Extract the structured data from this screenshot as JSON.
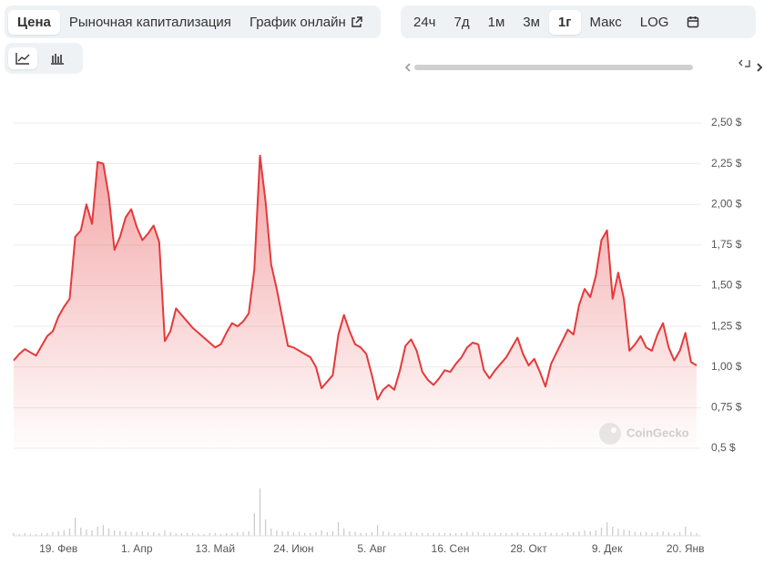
{
  "tabs": [
    "Цена",
    "Рыночная капитализация",
    "График онлайн"
  ],
  "active_tab": 0,
  "ranges": [
    "24ч",
    "7д",
    "1м",
    "3м",
    "1г",
    "Макс",
    "LOG"
  ],
  "active_range": 4,
  "chart_data": {
    "type": "line",
    "color": "#e5393b",
    "watermark": "CoinGecko",
    "ylim": [
      0.5,
      2.5
    ],
    "yticks": [
      {
        "value": 0.5,
        "label": "0,5 $"
      },
      {
        "value": 0.75,
        "label": "0,75 $"
      },
      {
        "value": 1,
        "label": "1,00 $"
      },
      {
        "value": 1.25,
        "label": "1,25 $"
      },
      {
        "value": 1.5,
        "label": "1,50 $"
      },
      {
        "value": 1.75,
        "label": "1,75 $"
      },
      {
        "value": 2,
        "label": "2,00 $"
      },
      {
        "value": 2.25,
        "label": "2,25 $"
      },
      {
        "value": 2.5,
        "label": "2,50 $"
      }
    ],
    "grid": true,
    "categories": [
      null,
      null,
      null,
      null,
      null,
      null,
      null,
      null,
      "19. Фев",
      null,
      null,
      null,
      null,
      null,
      null,
      null,
      null,
      null,
      null,
      null,
      null,
      null,
      "1. Апр",
      null,
      null,
      null,
      null,
      null,
      null,
      null,
      null,
      null,
      null,
      null,
      null,
      null,
      "13. Май",
      null,
      null,
      null,
      null,
      null,
      null,
      null,
      null,
      null,
      null,
      null,
      null,
      null,
      "24. Июн",
      null,
      null,
      null,
      null,
      null,
      null,
      null,
      null,
      null,
      null,
      null,
      null,
      null,
      "5. Авг",
      null,
      null,
      null,
      null,
      null,
      null,
      null,
      null,
      null,
      null,
      null,
      null,
      null,
      "16. Сен",
      null,
      null,
      null,
      null,
      null,
      null,
      null,
      null,
      null,
      null,
      null,
      null,
      null,
      "28. Окт",
      null,
      null,
      null,
      null,
      null,
      null,
      null,
      null,
      null,
      null,
      null,
      null,
      null,
      "9. Дек",
      null,
      null,
      null,
      null,
      null,
      null,
      null,
      null,
      null,
      null,
      null,
      null,
      null,
      "20. Янв",
      null,
      null
    ],
    "values": [
      1.04,
      1.08,
      1.11,
      1.09,
      1.07,
      1.13,
      1.19,
      1.22,
      1.31,
      1.37,
      1.42,
      1.8,
      1.84,
      2.0,
      1.88,
      2.26,
      2.25,
      2.05,
      1.72,
      1.8,
      1.92,
      1.97,
      1.86,
      1.78,
      1.82,
      1.87,
      1.77,
      1.16,
      1.22,
      1.36,
      1.32,
      1.28,
      1.24,
      1.21,
      1.18,
      1.15,
      1.12,
      1.14,
      1.21,
      1.27,
      1.25,
      1.28,
      1.33,
      1.6,
      2.3,
      2.02,
      1.63,
      1.48,
      1.3,
      1.13,
      1.12,
      1.1,
      1.08,
      1.06,
      1.0,
      0.87,
      0.91,
      0.95,
      1.2,
      1.32,
      1.22,
      1.14,
      1.12,
      1.08,
      0.95,
      0.8,
      0.86,
      0.89,
      0.86,
      0.98,
      1.13,
      1.17,
      1.1,
      0.97,
      0.92,
      0.89,
      0.93,
      0.98,
      0.97,
      1.02,
      1.06,
      1.12,
      1.15,
      1.14,
      0.98,
      0.93,
      0.98,
      1.02,
      1.06,
      1.12,
      1.18,
      1.08,
      1.01,
      1.05,
      0.97,
      0.88,
      1.02,
      1.09,
      1.16,
      1.23,
      1.2,
      1.38,
      1.48,
      1.43,
      1.56,
      1.78,
      1.84,
      1.42,
      1.58,
      1.42,
      1.1,
      1.14,
      1.19,
      1.12,
      1.1,
      1.2,
      1.27,
      1.12,
      1.04,
      1.1,
      1.21,
      1.03,
      1.01
    ],
    "volume": [
      3,
      2,
      3,
      2,
      2,
      3,
      3,
      4,
      5,
      6,
      8,
      20,
      9,
      7,
      6,
      10,
      12,
      8,
      6,
      5,
      5,
      4,
      4,
      5,
      4,
      4,
      3,
      6,
      4,
      3,
      3,
      3,
      3,
      2,
      2,
      3,
      3,
      2,
      3,
      3,
      4,
      4,
      5,
      25,
      52,
      18,
      8,
      6,
      5,
      5,
      4,
      4,
      3,
      3,
      4,
      6,
      4,
      5,
      15,
      8,
      5,
      4,
      3,
      3,
      4,
      12,
      5,
      4,
      3,
      3,
      4,
      4,
      3,
      3,
      3,
      3,
      3,
      3,
      3,
      3,
      3,
      4,
      4,
      4,
      3,
      3,
      3,
      3,
      3,
      3,
      4,
      3,
      3,
      3,
      3,
      4,
      3,
      3,
      3,
      4,
      4,
      5,
      6,
      5,
      6,
      9,
      15,
      10,
      8,
      7,
      6,
      4,
      4,
      4,
      3,
      4,
      5,
      4,
      3,
      4,
      10,
      4,
      3
    ]
  }
}
